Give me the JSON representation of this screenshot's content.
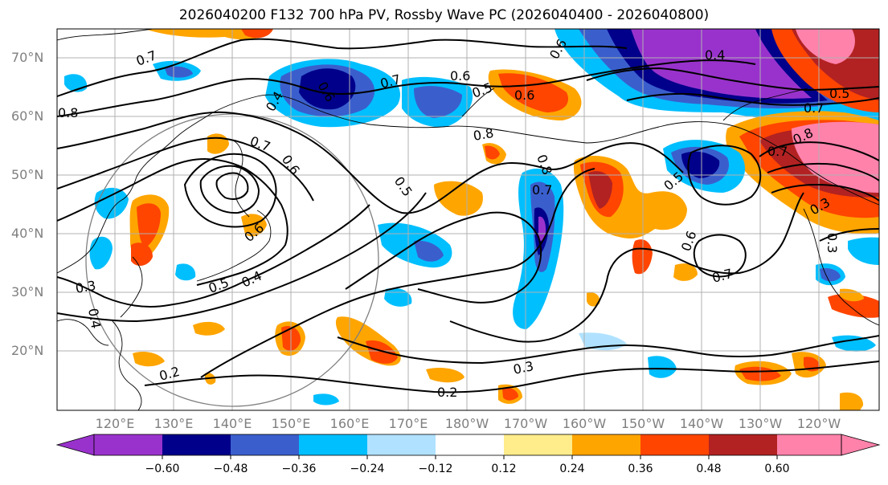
{
  "title": "2026040200 F132 700 hPa PV, Rossby Wave PC (2026040400 - 2026040800)",
  "map": {
    "lat_labels": [
      "70°N",
      "60°N",
      "50°N",
      "40°N",
      "30°N",
      "20°N"
    ],
    "lon_labels": [
      "120°E",
      "130°E",
      "140°E",
      "150°E",
      "160°E",
      "170°E",
      "180°W",
      "170°W",
      "160°W",
      "150°W",
      "140°W",
      "130°W",
      "120°W"
    ],
    "contour_labels": [
      "0.7",
      "0.6",
      "0.7",
      "0.6",
      "0.4",
      "0.5",
      "0.6",
      "0.8",
      "0.8",
      "0.6",
      "0.7",
      "0.5",
      "0.6",
      "0.7",
      "0.6",
      "0.5",
      "0.4",
      "0.3",
      "0.4",
      "0.5",
      "0.6",
      "0.7",
      "0.8",
      "0.7",
      "0.8",
      "0.5",
      "0.3",
      "0.2",
      "0.3",
      "0.2",
      "0.3",
      "0.4",
      "0.7"
    ]
  },
  "colorbar": {
    "colors": [
      "#9932CC",
      "#00008B",
      "#3A5FCD",
      "#00BFFF",
      "#B0E2FF",
      "#FFFFFF",
      "#FFEC8B",
      "#FFA500",
      "#FF4500",
      "#B22222",
      "#FF82AB"
    ],
    "ticks": [
      "−0.60",
      "−0.48",
      "−0.36",
      "−0.24",
      "−0.12",
      "0.12",
      "0.24",
      "0.36",
      "0.48",
      "0.60"
    ]
  }
}
